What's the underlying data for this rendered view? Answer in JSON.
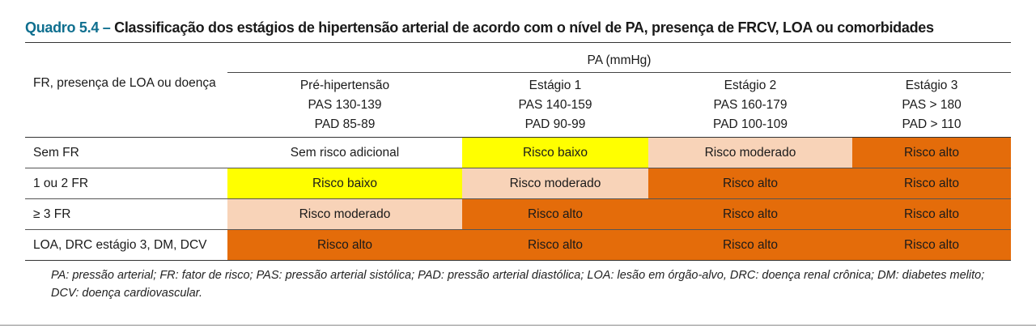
{
  "title": {
    "number": "Quadro 5.4 –",
    "text": "Classificação dos estágios de hipertensão arterial de acordo com o nível de PA, presença de FRCV, LOA ou comorbidades"
  },
  "table": {
    "row_header": "FR, presença de LOA ou doença",
    "group_header": "PA (mmHg)",
    "columns": [
      {
        "name": "Pré-hipertensão",
        "pas": "PAS 130-139",
        "pad": "PAD 85-89"
      },
      {
        "name": "Estágio 1",
        "pas": "PAS 140-159",
        "pad": "PAD 90-99"
      },
      {
        "name": "Estágio 2",
        "pas": "PAS 160-179",
        "pad": "PAD 100-109"
      },
      {
        "name": "Estágio 3",
        "pas": "PAS > 180",
        "pad": "PAD > 110"
      }
    ],
    "rows": [
      {
        "label": "Sem FR",
        "cells": [
          {
            "text": "Sem risco adicional",
            "color": "#ffffff"
          },
          {
            "text": "Risco baixo",
            "color": "#ffff00"
          },
          {
            "text": "Risco moderado",
            "color": "#f8d3b8"
          },
          {
            "text": "Risco alto",
            "color": "#e46c0a"
          }
        ]
      },
      {
        "label": "1 ou 2 FR",
        "cells": [
          {
            "text": "Risco baixo",
            "color": "#ffff00"
          },
          {
            "text": "Risco moderado",
            "color": "#f8d3b8"
          },
          {
            "text": "Risco alto",
            "color": "#e46c0a"
          },
          {
            "text": "Risco alto",
            "color": "#e46c0a"
          }
        ]
      },
      {
        "label": "≥ 3 FR",
        "cells": [
          {
            "text": "Risco moderado",
            "color": "#f8d3b8"
          },
          {
            "text": "Risco alto",
            "color": "#e46c0a"
          },
          {
            "text": "Risco alto",
            "color": "#e46c0a"
          },
          {
            "text": "Risco alto",
            "color": "#e46c0a"
          }
        ]
      },
      {
        "label": "LOA, DRC estágio 3, DM, DCV",
        "cells": [
          {
            "text": "Risco alto",
            "color": "#e46c0a"
          },
          {
            "text": "Risco alto",
            "color": "#e46c0a"
          },
          {
            "text": "Risco alto",
            "color": "#e46c0a"
          },
          {
            "text": "Risco alto",
            "color": "#e46c0a"
          }
        ]
      }
    ]
  },
  "footnote": "PA: pressão arterial; FR: fator de risco; PAS: pressão arterial sistólica; PAD: pressão arterial diastólica; LOA: lesão em órgão-alvo, DRC: doença renal crônica; DM: diabetes melito; DCV: doença cardiovascular."
}
